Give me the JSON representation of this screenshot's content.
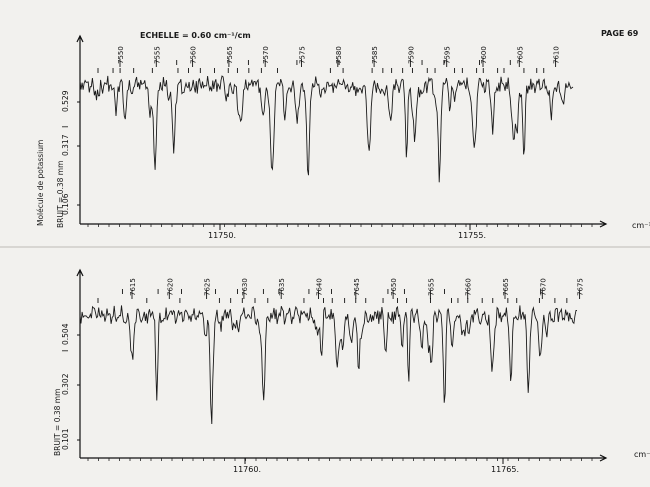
{
  "header": {
    "echelle": "ECHELLE = 0.60 cm⁻¹/cm",
    "page": "PAGE 69"
  },
  "side_label": {
    "molecule": "Molécule de potassium",
    "bruit": "BRUIT = 0.38 mm"
  },
  "chart_data": [
    {
      "type": "line",
      "title": "",
      "xlabel": "cm⁻¹",
      "ylabel": "I",
      "x_ticks": [
        "11750.",
        "11755."
      ],
      "y_ticks": [
        "0.529",
        "0.317",
        "0.106"
      ],
      "line_labels": [
        "7550",
        "7555",
        "7560",
        "7565",
        "7570",
        "7575",
        "7580",
        "7585",
        "7590",
        "7595",
        "7600",
        "7605",
        "7610"
      ],
      "series": [
        {
          "x_range": [
            11747.2,
            11761.0
          ],
          "points": 480
        }
      ]
    },
    {
      "type": "line",
      "title": "",
      "xlabel": "cm⁻",
      "ylabel": "I",
      "x_ticks": [
        "11760.",
        "11765."
      ],
      "y_ticks": [
        "0.504",
        "0.302",
        "0.101"
      ],
      "line_labels": [
        "7615",
        "7620",
        "7625",
        "7630",
        "7635",
        "7640",
        "7645",
        "7650",
        "7655",
        "7660",
        "7665",
        "7670",
        "7675"
      ],
      "series": [
        {
          "x_range": [
            11757.2,
            11768.5
          ],
          "points": 480
        }
      ]
    }
  ]
}
